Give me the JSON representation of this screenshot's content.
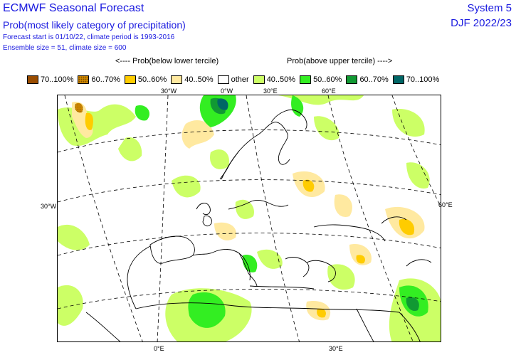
{
  "header": {
    "title": "ECMWF Seasonal Forecast",
    "subtitle": "Prob(most likely category of precipitation)",
    "forecast_line": "Forecast start is 01/10/22, climate period is 1993-2016",
    "ensemble_line": "Ensemble size = 51, climate size = 600",
    "system": "System 5",
    "season": "DJF 2022/23"
  },
  "legend_headers": {
    "below": "<---- Prob(below lower tercile)",
    "above": "Prob(above upper tercile) ---->"
  },
  "legend": [
    {
      "label": "70..100%",
      "color": "#994c00",
      "hatch": false
    },
    {
      "label": "60..70%",
      "color": "#cc8500",
      "hatch": true
    },
    {
      "label": "50..60%",
      "color": "#ffcc00",
      "hatch": false
    },
    {
      "label": "40..50%",
      "color": "#ffe9a0",
      "hatch": false
    },
    {
      "label": "other",
      "color": "#ffffff",
      "hatch": false
    },
    {
      "label": "40..50%",
      "color": "#ccff66",
      "hatch": false
    },
    {
      "label": "50..60%",
      "color": "#33ee22",
      "hatch": false
    },
    {
      "label": "60..70%",
      "color": "#119933",
      "hatch": false
    },
    {
      "label": "70..100%",
      "color": "#006666",
      "hatch": false
    }
  ],
  "axis_labels": {
    "top": [
      "30°W",
      "0°W",
      "30°E",
      "60°E"
    ],
    "left": "30°W",
    "right": "60°E",
    "bottom": [
      "0°E",
      "30°E"
    ]
  }
}
